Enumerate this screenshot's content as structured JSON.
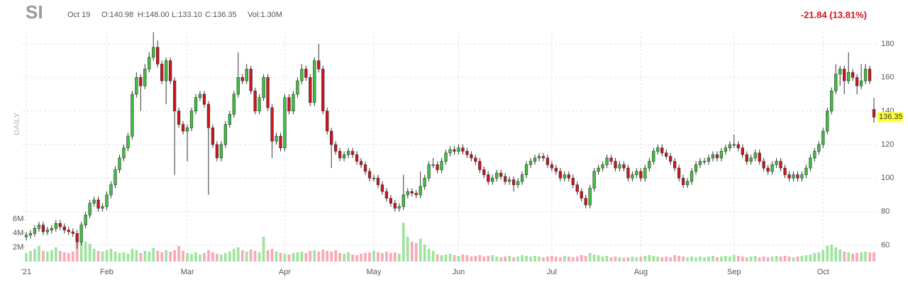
{
  "chart_data": {
    "type": "candlestick",
    "ticker": "SI",
    "date": "Oct 19",
    "open_text": "O:140.98",
    "high_text": "H:148.00",
    "low_text": "L:133.10",
    "close_text": "C:136.35",
    "volume_text": "Vol:1.30M",
    "change": "-21.84 (13.81%)",
    "y_label": "DAILY",
    "categories": [
      "'21",
      null,
      null,
      null,
      null,
      null,
      null,
      null,
      null,
      null,
      null,
      null,
      null,
      null,
      null,
      null,
      null,
      null,
      null,
      "Feb",
      null,
      null,
      null,
      null,
      null,
      null,
      null,
      null,
      null,
      null,
      null,
      null,
      null,
      null,
      null,
      null,
      null,
      null,
      "Mar",
      null,
      null,
      null,
      null,
      null,
      null,
      null,
      null,
      null,
      null,
      null,
      null,
      null,
      null,
      null,
      null,
      null,
      null,
      null,
      null,
      null,
      null,
      "Apr",
      null,
      null,
      null,
      null,
      null,
      null,
      null,
      null,
      null,
      null,
      null,
      null,
      null,
      null,
      null,
      null,
      null,
      null,
      null,
      null,
      "May",
      null,
      null,
      null,
      null,
      null,
      null,
      null,
      null,
      null,
      null,
      null,
      null,
      null,
      null,
      null,
      null,
      null,
      null,
      null,
      "Jun",
      null,
      null,
      null,
      null,
      null,
      null,
      null,
      null,
      null,
      null,
      null,
      null,
      null,
      null,
      null,
      null,
      null,
      null,
      null,
      null,
      null,
      "Jul",
      null,
      null,
      null,
      null,
      null,
      null,
      null,
      null,
      null,
      null,
      null,
      null,
      null,
      null,
      null,
      null,
      null,
      null,
      null,
      null,
      "Aug",
      null,
      null,
      null,
      null,
      null,
      null,
      null,
      null,
      null,
      null,
      null,
      null,
      null,
      null,
      null,
      null,
      null,
      null,
      null,
      null,
      null,
      "Sep",
      null,
      null,
      null,
      null,
      null,
      null,
      null,
      null,
      null,
      null,
      null,
      null,
      null,
      null,
      null,
      null,
      null,
      null,
      null,
      null,
      "Oct",
      null,
      null,
      null,
      null,
      null,
      null,
      null,
      null,
      null,
      null,
      null,
      null
    ],
    "open": [
      65,
      66,
      67,
      70,
      72,
      68,
      69,
      70,
      73,
      71,
      69,
      68,
      67,
      62,
      72,
      78,
      85,
      87,
      82,
      83,
      90,
      96,
      105,
      112,
      118,
      125,
      150,
      160,
      155,
      165,
      172,
      178,
      168,
      158,
      170,
      158,
      140,
      132,
      128,
      130,
      140,
      148,
      150,
      144,
      130,
      120,
      112,
      120,
      132,
      138,
      150,
      160,
      158,
      165,
      152,
      140,
      148,
      160,
      142,
      122,
      125,
      118,
      148,
      140,
      150,
      158,
      165,
      160,
      145,
      170,
      165,
      140,
      128,
      120,
      116,
      112,
      114,
      116,
      114,
      110,
      108,
      104,
      100,
      100,
      96,
      92,
      88,
      85,
      82,
      83,
      90,
      92,
      91,
      90,
      95,
      100,
      108,
      108,
      105,
      110,
      115,
      117,
      116,
      118,
      116,
      114,
      112,
      110,
      105,
      102,
      98,
      100,
      103,
      101,
      98,
      99,
      96,
      98,
      102,
      108,
      110,
      112,
      113,
      112,
      108,
      106,
      104,
      100,
      102,
      100,
      96,
      92,
      88,
      84,
      94,
      104,
      106,
      108,
      112,
      110,
      106,
      108,
      106,
      100,
      102,
      104,
      100,
      106,
      110,
      116,
      118,
      115,
      113,
      110,
      106,
      100,
      96,
      98,
      104,
      108,
      110,
      110,
      112,
      114,
      112,
      116,
      118,
      120,
      120,
      118,
      114,
      110,
      112,
      115,
      110,
      106,
      104,
      108,
      110,
      106,
      102,
      100,
      102,
      100,
      102,
      106,
      112,
      116,
      120,
      128,
      140,
      152,
      162,
      165,
      158,
      163,
      160,
      155,
      158,
      165,
      140.98
    ],
    "high": [
      68,
      69,
      72,
      74,
      74,
      71,
      72,
      75,
      75,
      73,
      71,
      70,
      69,
      74,
      80,
      87,
      89,
      89,
      85,
      92,
      98,
      107,
      114,
      120,
      127,
      152,
      163,
      162,
      168,
      175,
      187,
      182,
      170,
      172,
      172,
      160,
      142,
      134,
      132,
      142,
      150,
      152,
      152,
      146,
      132,
      122,
      122,
      134,
      140,
      152,
      175,
      162,
      168,
      167,
      154,
      150,
      162,
      162,
      144,
      127,
      127,
      150,
      150,
      152,
      160,
      168,
      167,
      162,
      172,
      180,
      167,
      142,
      130,
      122,
      118,
      116,
      118,
      118,
      116,
      112,
      110,
      106,
      102,
      102,
      98,
      94,
      90,
      87,
      85,
      102,
      94,
      94,
      93,
      104,
      102,
      110,
      112,
      110,
      112,
      117,
      119,
      119,
      120,
      120,
      118,
      116,
      114,
      112,
      107,
      104,
      102,
      105,
      105,
      103,
      101,
      101,
      100,
      104,
      110,
      112,
      114,
      115,
      115,
      114,
      110,
      108,
      106,
      104,
      104,
      102,
      98,
      94,
      90,
      96,
      106,
      108,
      110,
      114,
      114,
      112,
      110,
      110,
      108,
      104,
      106,
      106,
      108,
      112,
      118,
      120,
      120,
      117,
      115,
      112,
      108,
      102,
      100,
      106,
      110,
      112,
      112,
      114,
      116,
      116,
      118,
      120,
      122,
      126,
      122,
      120,
      116,
      114,
      117,
      117,
      112,
      108,
      110,
      112,
      112,
      108,
      104,
      104,
      104,
      104,
      108,
      114,
      118,
      122,
      130,
      142,
      154,
      168,
      167,
      167,
      175,
      165,
      162,
      168,
      168,
      167,
      148
    ],
    "low": [
      63,
      64,
      65,
      68,
      66,
      66,
      67,
      68,
      69,
      67,
      66,
      65,
      58,
      60,
      70,
      76,
      83,
      80,
      80,
      81,
      88,
      94,
      103,
      110,
      116,
      123,
      148,
      140,
      153,
      163,
      170,
      166,
      156,
      144,
      156,
      102,
      130,
      126,
      110,
      128,
      138,
      146,
      142,
      90,
      118,
      110,
      110,
      118,
      130,
      136,
      148,
      156,
      156,
      150,
      138,
      138,
      146,
      140,
      112,
      120,
      116,
      116,
      138,
      138,
      148,
      156,
      158,
      143,
      143,
      163,
      138,
      126,
      106,
      114,
      110,
      110,
      112,
      112,
      108,
      106,
      102,
      98,
      98,
      94,
      90,
      86,
      83,
      80,
      80,
      81,
      88,
      89,
      88,
      88,
      93,
      98,
      106,
      103,
      103,
      108,
      113,
      114,
      114,
      114,
      112,
      110,
      108,
      103,
      100,
      96,
      96,
      98,
      99,
      96,
      96,
      92,
      94,
      96,
      100,
      106,
      108,
      110,
      110,
      106,
      104,
      102,
      98,
      98,
      98,
      94,
      90,
      86,
      82,
      82,
      92,
      102,
      104,
      106,
      108,
      104,
      104,
      104,
      98,
      98,
      100,
      98,
      98,
      104,
      108,
      114,
      113,
      111,
      108,
      104,
      98,
      94,
      94,
      96,
      102,
      106,
      108,
      108,
      110,
      110,
      110,
      114,
      116,
      118,
      116,
      112,
      108,
      108,
      110,
      108,
      104,
      102,
      102,
      106,
      104,
      100,
      98,
      98,
      98,
      98,
      100,
      104,
      110,
      114,
      118,
      126,
      138,
      150,
      155,
      150,
      156,
      158,
      150,
      153,
      156,
      156,
      133.1
    ],
    "close": [
      66,
      67,
      70,
      72,
      68,
      69,
      70,
      73,
      71,
      69,
      68,
      67,
      62,
      72,
      78,
      85,
      87,
      82,
      83,
      90,
      96,
      105,
      112,
      118,
      125,
      150,
      160,
      155,
      165,
      172,
      178,
      168,
      158,
      170,
      158,
      140,
      132,
      128,
      130,
      140,
      148,
      150,
      144,
      130,
      120,
      112,
      120,
      132,
      138,
      150,
      160,
      158,
      165,
      152,
      140,
      148,
      160,
      142,
      122,
      125,
      118,
      148,
      140,
      150,
      158,
      165,
      160,
      145,
      170,
      165,
      140,
      128,
      120,
      116,
      112,
      114,
      116,
      114,
      110,
      108,
      104,
      100,
      100,
      96,
      92,
      88,
      85,
      82,
      83,
      90,
      92,
      91,
      90,
      95,
      100,
      108,
      108,
      105,
      110,
      115,
      117,
      116,
      118,
      116,
      114,
      112,
      110,
      105,
      102,
      98,
      100,
      103,
      101,
      98,
      99,
      96,
      98,
      102,
      108,
      110,
      112,
      113,
      112,
      108,
      106,
      104,
      100,
      102,
      100,
      96,
      92,
      88,
      84,
      94,
      104,
      106,
      108,
      112,
      110,
      106,
      108,
      106,
      100,
      102,
      104,
      100,
      106,
      110,
      116,
      118,
      115,
      113,
      110,
      106,
      100,
      96,
      98,
      104,
      108,
      110,
      110,
      112,
      114,
      112,
      116,
      118,
      120,
      120,
      118,
      114,
      110,
      112,
      115,
      110,
      106,
      104,
      108,
      110,
      106,
      102,
      100,
      102,
      100,
      102,
      106,
      112,
      116,
      120,
      128,
      140,
      152,
      162,
      165,
      158,
      163,
      160,
      155,
      158,
      165,
      158,
      136.35
    ],
    "volume": [
      1.2,
      1.5,
      1.8,
      2.2,
      1.5,
      1.4,
      1.6,
      2.0,
      1.5,
      1.3,
      1.2,
      1.4,
      3.5,
      3.0,
      2.8,
      2.5,
      1.8,
      1.5,
      1.4,
      1.6,
      1.8,
      1.4,
      1.2,
      1.3,
      1.1,
      1.8,
      1.6,
      1.2,
      1.5,
      1.4,
      1.9,
      1.5,
      1.3,
      1.6,
      1.4,
      1.6,
      2.2,
      1.5,
      1.2,
      1.1,
      1.3,
      1.0,
      1.2,
      1.6,
      1.3,
      1.1,
      1.0,
      1.2,
      1.4,
      1.8,
      2.0,
      1.6,
      1.4,
      1.7,
      1.5,
      1.3,
      3.5,
      1.6,
      1.8,
      1.4,
      1.2,
      1.1,
      1.0,
      1.2,
      1.3,
      1.4,
      1.2,
      1.5,
      1.6,
      1.4,
      1.7,
      1.5,
      1.4,
      1.6,
      1.2,
      1.1,
      1.3,
      1.0,
      0.9,
      1.1,
      1.2,
      1.3,
      1.5,
      1.3,
      1.2,
      1.4,
      1.2,
      1.3,
      1.1,
      5.5,
      3.5,
      2.8,
      2.6,
      3.2,
      2.4,
      1.8,
      1.5,
      1.0,
      0.9,
      1.0,
      1.1,
      0.9,
      0.8,
      1.0,
      0.9,
      0.7,
      0.8,
      0.9,
      0.7,
      0.8,
      0.9,
      0.7,
      0.6,
      0.7,
      0.8,
      0.6,
      0.7,
      0.9,
      0.8,
      0.7,
      0.8,
      0.7,
      0.6,
      0.7,
      0.8,
      0.7,
      0.6,
      0.8,
      0.7,
      0.6,
      0.7,
      0.9,
      0.8,
      1.2,
      1.0,
      0.9,
      0.7,
      0.8,
      0.6,
      0.7,
      0.6,
      0.5,
      0.6,
      0.7,
      0.6,
      0.7,
      0.8,
      0.9,
      0.8,
      0.7,
      0.6,
      0.7,
      0.6,
      0.9,
      0.8,
      0.7,
      0.6,
      0.7,
      0.6,
      0.7,
      0.6,
      0.7,
      0.8,
      0.6,
      0.7,
      0.8,
      0.7,
      0.9,
      0.8,
      0.7,
      0.6,
      0.7,
      0.8,
      0.6,
      0.7,
      0.6,
      0.7,
      0.8,
      0.7,
      0.8,
      0.7,
      0.6,
      0.7,
      0.8,
      0.9,
      1.0,
      1.2,
      1.3,
      1.6,
      2.2,
      2.4,
      2.0,
      1.7,
      1.4,
      1.3,
      1.1,
      1.2,
      1.3,
      1.4,
      1.3,
      1.3
    ],
    "ylim": [
      47.75,
      187.17
    ],
    "yticks": [
      60,
      80,
      100,
      120,
      140,
      160,
      180
    ],
    "volume_ylim": [
      0,
      6
    ],
    "volume_ticks": [
      {
        "value": 2,
        "label": "2M"
      },
      {
        "value": 4,
        "label": "4M"
      },
      {
        "value": 6,
        "label": "6M"
      }
    ],
    "grid": true,
    "up_color": "#3cc23c",
    "down_color": "#d0141c",
    "volume_up_color": "#9fe39f",
    "volume_down_color": "#f7a9b8"
  }
}
